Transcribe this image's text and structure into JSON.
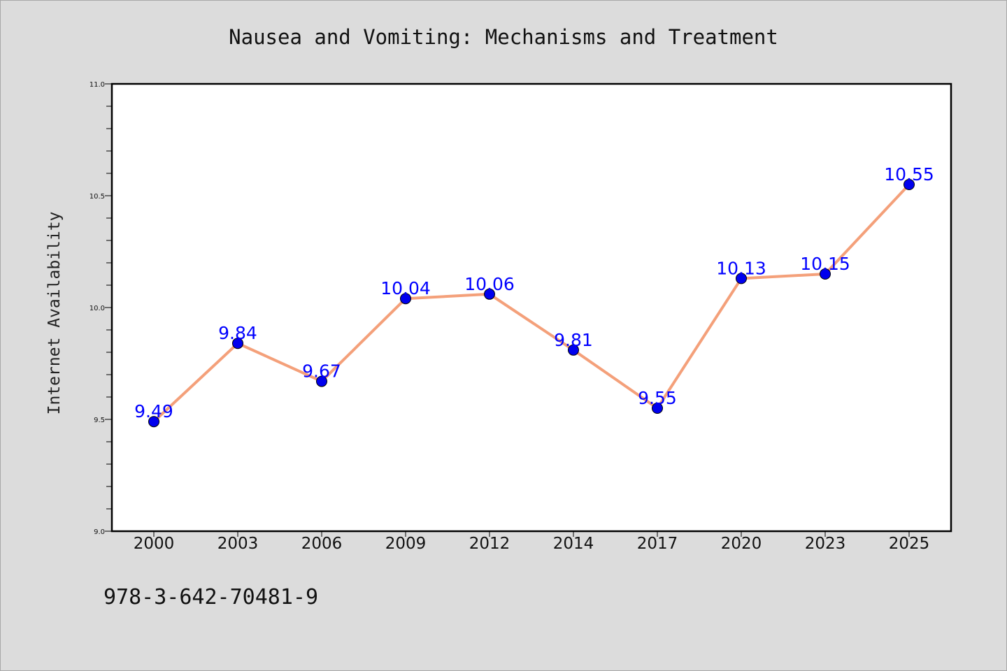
{
  "chart_data": {
    "type": "line",
    "title": "Nausea and Vomiting: Mechanisms and Treatment",
    "xlabel": "",
    "ylabel": "Internet Availability",
    "categories": [
      "2000",
      "2003",
      "2006",
      "2009",
      "2012",
      "2014",
      "2017",
      "2020",
      "2023",
      "2025"
    ],
    "series": [
      {
        "values": [
          9.49,
          9.84,
          9.67,
          10.04,
          10.06,
          9.81,
          9.55,
          10.13,
          10.15,
          10.55
        ],
        "data_labels": [
          "9.49",
          "9.84",
          "9.67",
          "10.04",
          "10.06",
          "9.81",
          "9.55",
          "10.13",
          "10.15",
          "10.55"
        ],
        "line_color": "#f4a07a",
        "marker_color": "#0000ee"
      }
    ],
    "ylim": [
      9.0,
      11.0
    ],
    "yticks": [
      "9.0",
      "9.5",
      "10.0",
      "10.5",
      "11.0"
    ],
    "grid": false,
    "legend": "none"
  },
  "footer": {
    "isbn": "978-3-642-70481-9"
  }
}
